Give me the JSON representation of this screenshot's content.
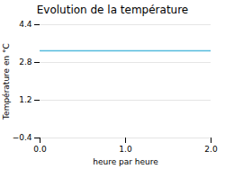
{
  "chart_data": {
    "type": "line",
    "title": "Evolution de la température",
    "xlabel": "heure par heure",
    "ylabel": "Température en °C",
    "x": [
      0,
      2
    ],
    "values": [
      3.3,
      3.3
    ],
    "color": "#55bbdd",
    "xlim": [
      0,
      2
    ],
    "ylim": [
      -0.4,
      4.4
    ],
    "xticks": [
      0,
      1,
      2
    ],
    "yticks": [
      -0.4,
      1.2,
      2.8,
      4.4
    ],
    "grid": true
  }
}
